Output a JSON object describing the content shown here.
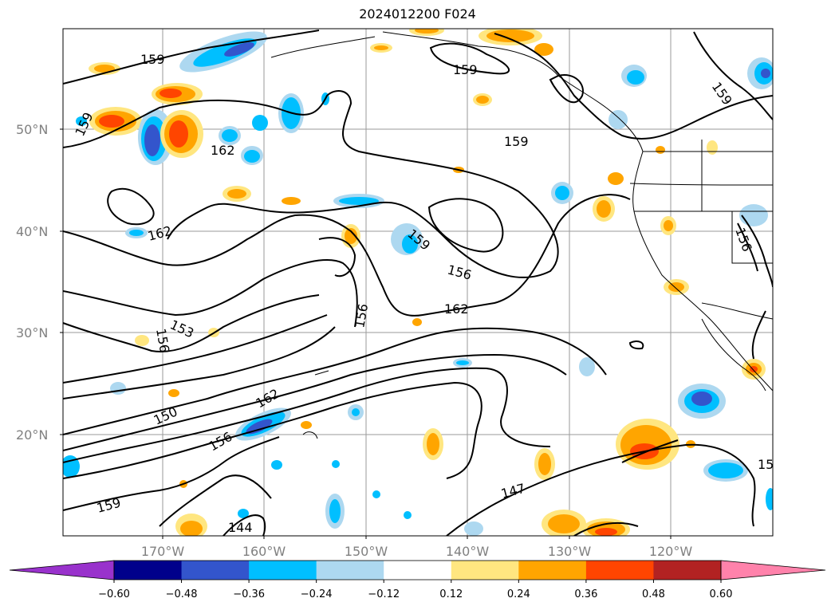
{
  "title": "2024012200 F024",
  "map": {
    "lat_ticks": [
      "50°N",
      "40°N",
      "30°N",
      "20°N"
    ],
    "lon_ticks": [
      "170°W",
      "160°W",
      "150°W",
      "140°W",
      "130°W",
      "120°W"
    ],
    "contour_labels": [
      "159",
      "159",
      "159",
      "159",
      "159",
      "159",
      "162",
      "162",
      "162",
      "162",
      "156",
      "156",
      "156",
      "156",
      "153",
      "150",
      "156",
      "147",
      "144",
      "15"
    ]
  },
  "colorbar": {
    "ticks": [
      "−0.60",
      "−0.48",
      "−0.36",
      "−0.24",
      "−0.12",
      "0.12",
      "0.24",
      "0.36",
      "0.48",
      "0.60"
    ],
    "colors": [
      "#9932cc",
      "#00008b",
      "#3355cc",
      "#00bfff",
      "#add8f0",
      "#ffffff",
      "#ffe680",
      "#ffa500",
      "#ff4500",
      "#b22222",
      "#ff82ab"
    ]
  }
}
